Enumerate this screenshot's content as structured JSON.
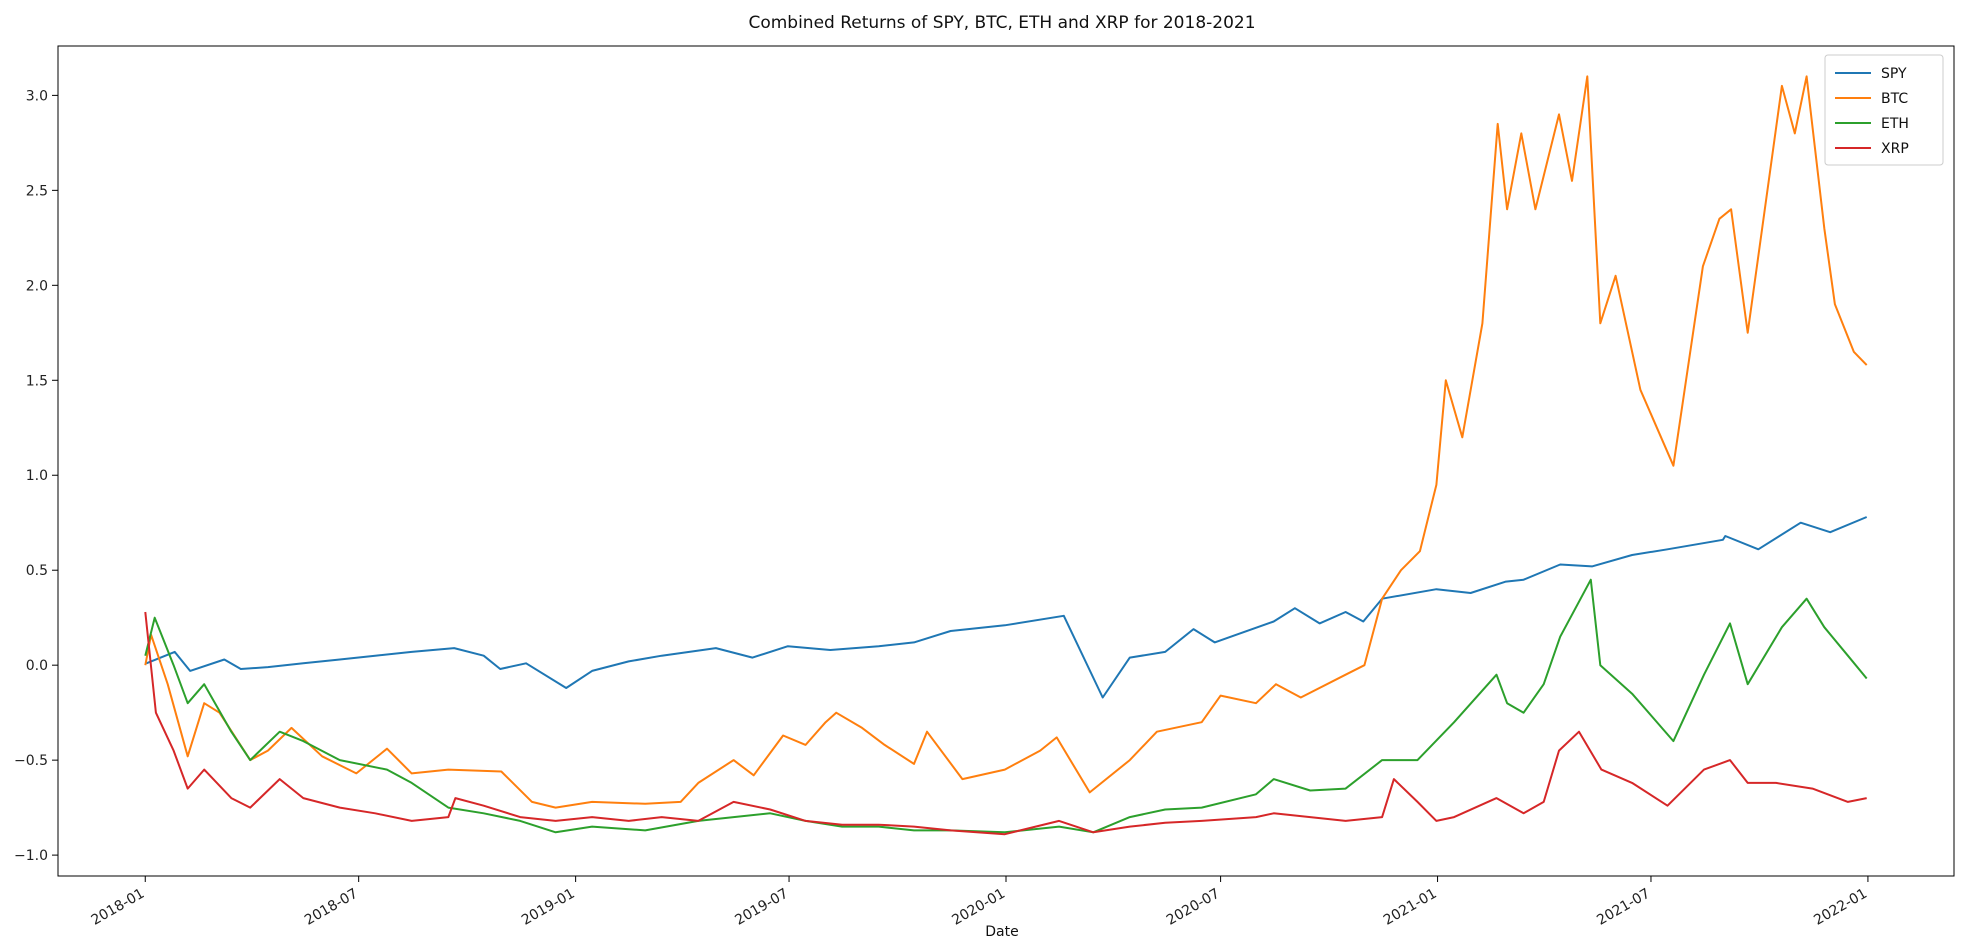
{
  "chart_data": {
    "type": "line",
    "title": "Combined Returns of SPY, BTC, ETH and XRP for 2018-2021",
    "xlabel": "Date",
    "ylabel": "",
    "x_ticks": [
      "2018-01",
      "2018-07",
      "2019-01",
      "2019-07",
      "2020-01",
      "2020-07",
      "2021-01",
      "2021-07",
      "2022-01"
    ],
    "y_ticks": [
      "-1.0",
      "-0.5",
      "0.0",
      "0.5",
      "1.0",
      "1.5",
      "2.0",
      "2.5",
      "3.0"
    ],
    "xlim": [
      "2017-10-19",
      "2022-03-15"
    ],
    "ylim": [
      -1.11,
      3.26
    ],
    "grid": false,
    "legend": "top-right",
    "series": [
      {
        "name": "SPY",
        "color": "#1f77b4",
        "points": [
          [
            "2018-01-02",
            0.01
          ],
          [
            "2018-01-26",
            0.07
          ],
          [
            "2018-02-08",
            -0.03
          ],
          [
            "2018-03-09",
            0.03
          ],
          [
            "2018-03-23",
            -0.02
          ],
          [
            "2018-04-15",
            -0.01
          ],
          [
            "2018-05-15",
            0.01
          ],
          [
            "2018-06-15",
            0.03
          ],
          [
            "2018-07-15",
            0.05
          ],
          [
            "2018-08-15",
            0.07
          ],
          [
            "2018-09-20",
            0.09
          ],
          [
            "2018-10-15",
            0.05
          ],
          [
            "2018-10-29",
            -0.02
          ],
          [
            "2018-11-20",
            0.01
          ],
          [
            "2018-12-24",
            -0.12
          ],
          [
            "2019-01-15",
            -0.03
          ],
          [
            "2019-02-15",
            0.02
          ],
          [
            "2019-03-15",
            0.05
          ],
          [
            "2019-04-30",
            0.09
          ],
          [
            "2019-05-31",
            0.04
          ],
          [
            "2019-06-30",
            0.1
          ],
          [
            "2019-08-05",
            0.08
          ],
          [
            "2019-09-15",
            0.1
          ],
          [
            "2019-10-15",
            0.12
          ],
          [
            "2019-11-15",
            0.18
          ],
          [
            "2019-12-31",
            0.21
          ],
          [
            "2020-02-19",
            0.26
          ],
          [
            "2020-03-23",
            -0.17
          ],
          [
            "2020-04-15",
            0.04
          ],
          [
            "2020-05-15",
            0.07
          ],
          [
            "2020-06-08",
            0.19
          ],
          [
            "2020-06-26",
            0.12
          ],
          [
            "2020-08-15",
            0.23
          ],
          [
            "2020-09-02",
            0.3
          ],
          [
            "2020-09-23",
            0.22
          ],
          [
            "2020-10-15",
            0.28
          ],
          [
            "2020-10-30",
            0.23
          ],
          [
            "2020-11-15",
            0.35
          ],
          [
            "2020-12-31",
            0.4
          ],
          [
            "2021-01-29",
            0.38
          ],
          [
            "2021-02-28",
            0.44
          ],
          [
            "2021-03-15",
            0.45
          ],
          [
            "2021-04-15",
            0.53
          ],
          [
            "2021-05-12",
            0.52
          ],
          [
            "2021-06-15",
            0.58
          ],
          [
            "2021-07-15",
            0.61
          ],
          [
            "2021-08-31",
            0.66
          ],
          [
            "2021-09-02",
            0.68
          ],
          [
            "2021-09-30",
            0.61
          ],
          [
            "2021-11-05",
            0.75
          ],
          [
            "2021-11-30",
            0.7
          ],
          [
            "2021-12-31",
            0.78
          ]
        ]
      },
      {
        "name": "BTC",
        "color": "#ff7f0e",
        "points": [
          [
            "2018-01-01",
            0.0
          ],
          [
            "2018-01-06",
            0.16
          ],
          [
            "2018-01-20",
            -0.1
          ],
          [
            "2018-02-06",
            -0.48
          ],
          [
            "2018-02-20",
            -0.2
          ],
          [
            "2018-03-05",
            -0.25
          ],
          [
            "2018-03-31",
            -0.5
          ],
          [
            "2018-04-15",
            -0.45
          ],
          [
            "2018-05-05",
            -0.33
          ],
          [
            "2018-05-31",
            -0.48
          ],
          [
            "2018-06-29",
            -0.57
          ],
          [
            "2018-07-25",
            -0.44
          ],
          [
            "2018-08-15",
            -0.57
          ],
          [
            "2018-09-15",
            -0.55
          ],
          [
            "2018-10-30",
            -0.56
          ],
          [
            "2018-11-25",
            -0.72
          ],
          [
            "2018-12-15",
            -0.75
          ],
          [
            "2019-01-15",
            -0.72
          ],
          [
            "2019-03-01",
            -0.73
          ],
          [
            "2019-03-31",
            -0.72
          ],
          [
            "2019-04-15",
            -0.62
          ],
          [
            "2019-05-15",
            -0.5
          ],
          [
            "2019-06-01",
            -0.58
          ],
          [
            "2019-06-26",
            -0.37
          ],
          [
            "2019-07-15",
            -0.42
          ],
          [
            "2019-08-01",
            -0.3
          ],
          [
            "2019-08-10",
            -0.25
          ],
          [
            "2019-09-01",
            -0.33
          ],
          [
            "2019-09-20",
            -0.42
          ],
          [
            "2019-10-15",
            -0.52
          ],
          [
            "2019-10-26",
            -0.35
          ],
          [
            "2019-11-25",
            -0.6
          ],
          [
            "2019-12-31",
            -0.55
          ],
          [
            "2020-01-30",
            -0.45
          ],
          [
            "2020-02-13",
            -0.38
          ],
          [
            "2020-03-12",
            -0.67
          ],
          [
            "2020-04-15",
            -0.5
          ],
          [
            "2020-05-08",
            -0.35
          ],
          [
            "2020-06-15",
            -0.3
          ],
          [
            "2020-07-01",
            -0.16
          ],
          [
            "2020-07-31",
            -0.2
          ],
          [
            "2020-08-17",
            -0.1
          ],
          [
            "2020-09-07",
            -0.17
          ],
          [
            "2020-10-15",
            -0.05
          ],
          [
            "2020-10-31",
            0.0
          ],
          [
            "2020-11-15",
            0.35
          ],
          [
            "2020-12-01",
            0.5
          ],
          [
            "2020-12-17",
            0.6
          ],
          [
            "2020-12-31",
            0.95
          ],
          [
            "2021-01-08",
            1.5
          ],
          [
            "2021-01-22",
            1.2
          ],
          [
            "2021-02-08",
            1.8
          ],
          [
            "2021-02-21",
            2.85
          ],
          [
            "2021-03-01",
            2.4
          ],
          [
            "2021-03-13",
            2.8
          ],
          [
            "2021-03-25",
            2.4
          ],
          [
            "2021-04-14",
            2.9
          ],
          [
            "2021-04-25",
            2.55
          ],
          [
            "2021-05-08",
            3.1
          ],
          [
            "2021-05-19",
            1.8
          ],
          [
            "2021-06-01",
            2.05
          ],
          [
            "2021-06-22",
            1.45
          ],
          [
            "2021-07-20",
            1.05
          ],
          [
            "2021-08-14",
            2.1
          ],
          [
            "2021-08-28",
            2.35
          ],
          [
            "2021-09-07",
            2.4
          ],
          [
            "2021-09-21",
            1.75
          ],
          [
            "2021-10-20",
            3.05
          ],
          [
            "2021-10-31",
            2.8
          ],
          [
            "2021-11-10",
            3.1
          ],
          [
            "2021-11-25",
            2.3
          ],
          [
            "2021-12-04",
            1.9
          ],
          [
            "2021-12-20",
            1.65
          ],
          [
            "2021-12-31",
            1.58
          ]
        ]
      },
      {
        "name": "ETH",
        "color": "#2ca02c",
        "points": [
          [
            "2018-01-01",
            0.05
          ],
          [
            "2018-01-09",
            0.25
          ],
          [
            "2018-01-25",
            0.0
          ],
          [
            "2018-02-06",
            -0.2
          ],
          [
            "2018-02-20",
            -0.1
          ],
          [
            "2018-03-15",
            -0.35
          ],
          [
            "2018-03-31",
            -0.5
          ],
          [
            "2018-04-25",
            -0.35
          ],
          [
            "2018-05-15",
            -0.4
          ],
          [
            "2018-06-15",
            -0.5
          ],
          [
            "2018-07-25",
            -0.55
          ],
          [
            "2018-08-15",
            -0.62
          ],
          [
            "2018-09-15",
            -0.75
          ],
          [
            "2018-10-15",
            -0.78
          ],
          [
            "2018-11-15",
            -0.82
          ],
          [
            "2018-12-15",
            -0.88
          ],
          [
            "2019-01-15",
            -0.85
          ],
          [
            "2019-03-01",
            -0.87
          ],
          [
            "2019-04-15",
            -0.82
          ],
          [
            "2019-05-15",
            -0.8
          ],
          [
            "2019-06-15",
            -0.78
          ],
          [
            "2019-07-15",
            -0.82
          ],
          [
            "2019-08-15",
            -0.85
          ],
          [
            "2019-09-15",
            -0.85
          ],
          [
            "2019-10-15",
            -0.87
          ],
          [
            "2019-11-15",
            -0.87
          ],
          [
            "2019-12-31",
            -0.88
          ],
          [
            "2020-02-15",
            -0.85
          ],
          [
            "2020-03-15",
            -0.88
          ],
          [
            "2020-04-15",
            -0.8
          ],
          [
            "2020-05-15",
            -0.76
          ],
          [
            "2020-06-15",
            -0.75
          ],
          [
            "2020-07-31",
            -0.68
          ],
          [
            "2020-08-15",
            -0.6
          ],
          [
            "2020-09-15",
            -0.66
          ],
          [
            "2020-10-15",
            -0.65
          ],
          [
            "2020-11-15",
            -0.5
          ],
          [
            "2020-12-15",
            -0.5
          ],
          [
            "2021-01-15",
            -0.3
          ],
          [
            "2021-02-20",
            -0.05
          ],
          [
            "2021-03-01",
            -0.2
          ],
          [
            "2021-03-15",
            -0.25
          ],
          [
            "2021-04-01",
            -0.1
          ],
          [
            "2021-04-15",
            0.15
          ],
          [
            "2021-05-11",
            0.45
          ],
          [
            "2021-05-19",
            0.0
          ],
          [
            "2021-06-15",
            -0.15
          ],
          [
            "2021-07-20",
            -0.4
          ],
          [
            "2021-08-15",
            -0.05
          ],
          [
            "2021-09-06",
            0.22
          ],
          [
            "2021-09-21",
            -0.1
          ],
          [
            "2021-10-20",
            0.2
          ],
          [
            "2021-11-10",
            0.35
          ],
          [
            "2021-11-25",
            0.2
          ],
          [
            "2021-12-15",
            0.05
          ],
          [
            "2021-12-31",
            -0.07
          ]
        ]
      },
      {
        "name": "XRP",
        "color": "#d62728",
        "points": [
          [
            "2018-01-01",
            0.28
          ],
          [
            "2018-01-10",
            -0.25
          ],
          [
            "2018-01-25",
            -0.45
          ],
          [
            "2018-02-06",
            -0.65
          ],
          [
            "2018-02-20",
            -0.55
          ],
          [
            "2018-03-15",
            -0.7
          ],
          [
            "2018-03-31",
            -0.75
          ],
          [
            "2018-04-25",
            -0.6
          ],
          [
            "2018-05-15",
            -0.7
          ],
          [
            "2018-06-15",
            -0.75
          ],
          [
            "2018-07-15",
            -0.78
          ],
          [
            "2018-08-15",
            -0.82
          ],
          [
            "2018-09-15",
            -0.8
          ],
          [
            "2018-09-21",
            -0.7
          ],
          [
            "2018-10-15",
            -0.74
          ],
          [
            "2018-11-15",
            -0.8
          ],
          [
            "2018-12-15",
            -0.82
          ],
          [
            "2019-01-15",
            -0.8
          ],
          [
            "2019-02-15",
            -0.82
          ],
          [
            "2019-03-15",
            -0.8
          ],
          [
            "2019-04-15",
            -0.82
          ],
          [
            "2019-05-15",
            -0.72
          ],
          [
            "2019-06-15",
            -0.76
          ],
          [
            "2019-07-15",
            -0.82
          ],
          [
            "2019-08-15",
            -0.84
          ],
          [
            "2019-09-15",
            -0.84
          ],
          [
            "2019-10-15",
            -0.85
          ],
          [
            "2019-11-15",
            -0.87
          ],
          [
            "2019-12-31",
            -0.89
          ],
          [
            "2020-02-15",
            -0.82
          ],
          [
            "2020-03-15",
            -0.88
          ],
          [
            "2020-04-15",
            -0.85
          ],
          [
            "2020-05-15",
            -0.83
          ],
          [
            "2020-06-15",
            -0.82
          ],
          [
            "2020-07-31",
            -0.8
          ],
          [
            "2020-08-15",
            -0.78
          ],
          [
            "2020-09-15",
            -0.8
          ],
          [
            "2020-10-15",
            -0.82
          ],
          [
            "2020-11-15",
            -0.8
          ],
          [
            "2020-11-25",
            -0.6
          ],
          [
            "2020-12-15",
            -0.72
          ],
          [
            "2020-12-31",
            -0.82
          ],
          [
            "2021-01-15",
            -0.8
          ],
          [
            "2021-02-20",
            -0.7
          ],
          [
            "2021-03-15",
            -0.78
          ],
          [
            "2021-04-01",
            -0.72
          ],
          [
            "2021-04-14",
            -0.45
          ],
          [
            "2021-05-01",
            -0.35
          ],
          [
            "2021-05-20",
            -0.55
          ],
          [
            "2021-06-15",
            -0.62
          ],
          [
            "2021-07-15",
            -0.74
          ],
          [
            "2021-08-15",
            -0.55
          ],
          [
            "2021-09-06",
            -0.5
          ],
          [
            "2021-09-21",
            -0.62
          ],
          [
            "2021-10-15",
            -0.62
          ],
          [
            "2021-11-15",
            -0.65
          ],
          [
            "2021-12-15",
            -0.72
          ],
          [
            "2021-12-31",
            -0.7
          ]
        ]
      }
    ]
  }
}
